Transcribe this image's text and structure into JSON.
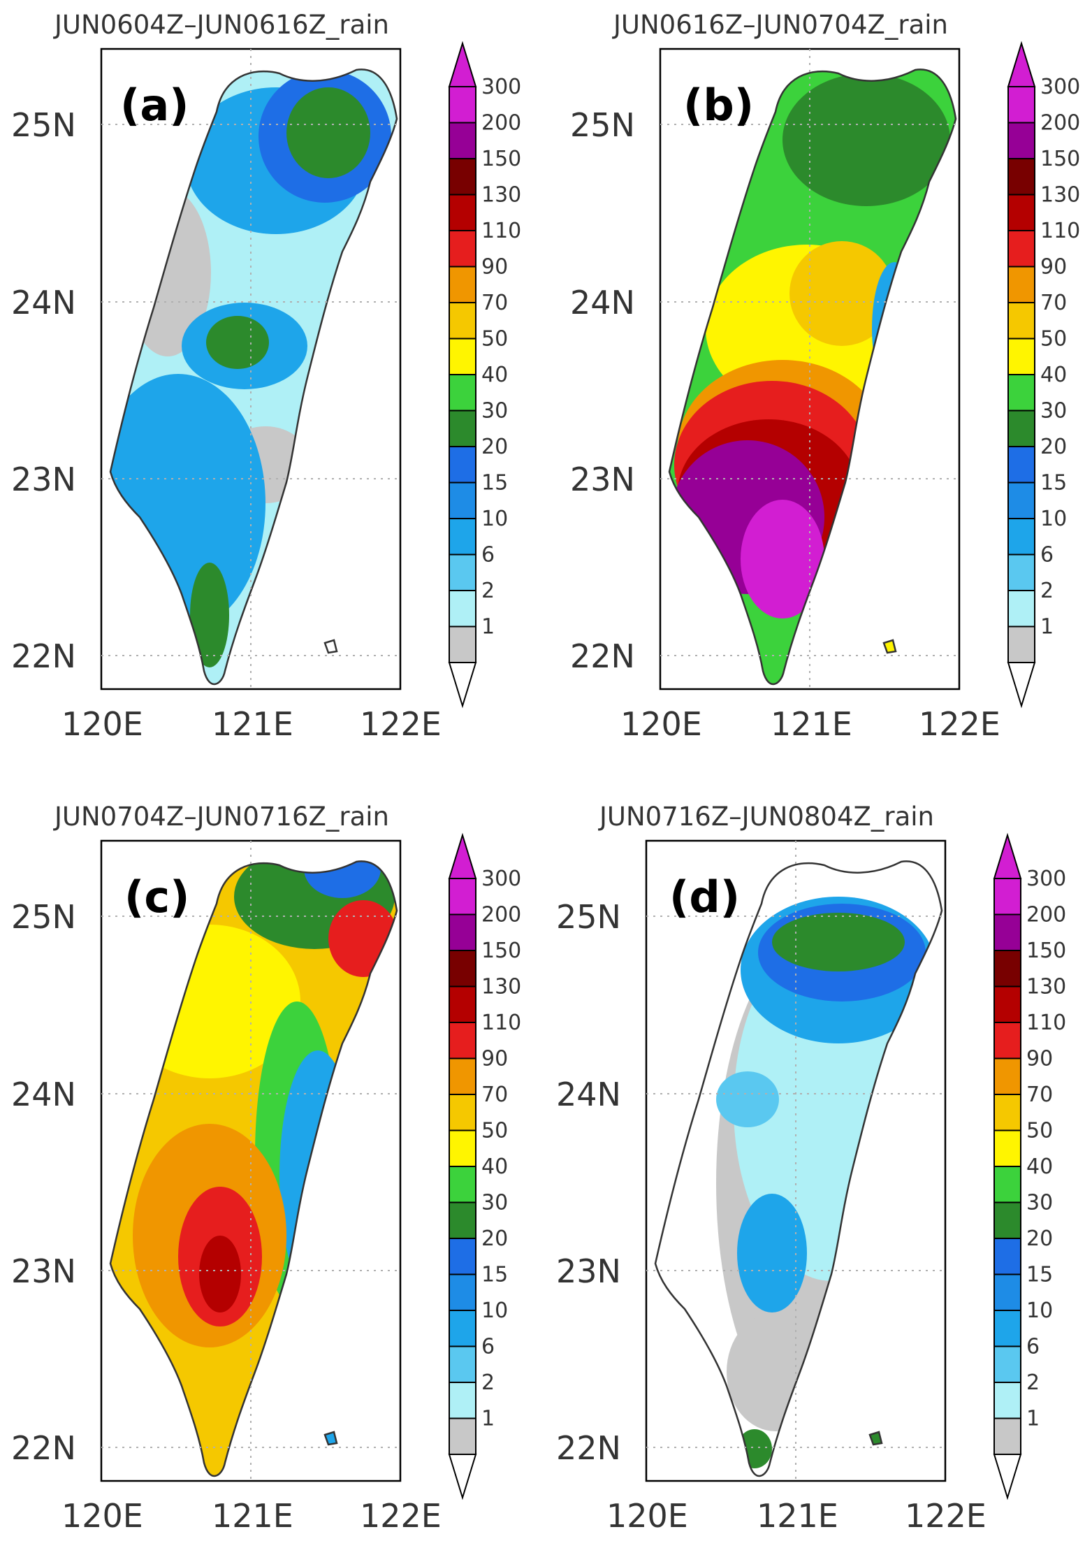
{
  "figure": {
    "panels": [
      {
        "letter": "(a)",
        "title": "JUN0604Z–JUN0616Z_rain",
        "regions": [
          {
            "kind": "base",
            "color": "#aff0f6"
          },
          {
            "kind": "blob",
            "color": "#c8c8c8",
            "at": "north-west lowland"
          },
          {
            "kind": "blob",
            "color": "#c8c8c8",
            "at": "central-south lowland"
          },
          {
            "kind": "blob",
            "color": "#1ea5ea",
            "at": "north"
          },
          {
            "kind": "blob",
            "color": "#1e6ee6",
            "at": "north-east"
          },
          {
            "kind": "blob",
            "color": "#2c8a2c",
            "at": "north-east"
          },
          {
            "kind": "blob",
            "color": "#1ea5ea",
            "at": "centre"
          },
          {
            "kind": "blob",
            "color": "#2c8a2c",
            "at": "centre"
          },
          {
            "kind": "blob",
            "color": "#1ea5ea",
            "at": "south-west"
          },
          {
            "kind": "blob",
            "color": "#2c8a2c",
            "at": "south tip"
          }
        ]
      },
      {
        "letter": "(b)",
        "title": "JUN0616Z–JUN0704Z_rain",
        "regions": [
          {
            "kind": "base",
            "color": "#3cd23c"
          },
          {
            "kind": "blob",
            "color": "#2c8a2c",
            "at": "north"
          },
          {
            "kind": "blob",
            "color": "#fff500",
            "at": "central"
          },
          {
            "kind": "blob",
            "color": "#f5c800",
            "at": "central"
          },
          {
            "kind": "blob",
            "color": "#1ea5ea",
            "at": "east coast"
          },
          {
            "kind": "blob",
            "color": "#f09600",
            "at": "south-west"
          },
          {
            "kind": "blob",
            "color": "#e61e1e",
            "at": "south-west"
          },
          {
            "kind": "blob",
            "color": "#b40000",
            "at": "south-west"
          },
          {
            "kind": "blob",
            "color": "#960096",
            "at": "south-west"
          },
          {
            "kind": "blob",
            "color": "#d21ed2",
            "at": "south"
          }
        ]
      },
      {
        "letter": "(c)",
        "title": "JUN0704Z–JUN0716Z_rain",
        "regions": [
          {
            "kind": "base",
            "color": "#f5c800"
          },
          {
            "kind": "blob",
            "color": "#fff500",
            "at": "north-west"
          },
          {
            "kind": "blob",
            "color": "#2c8a2c",
            "at": "north"
          },
          {
            "kind": "blob",
            "color": "#1e6ee6",
            "at": "north tip"
          },
          {
            "kind": "blob",
            "color": "#e61e1e",
            "at": "north-east"
          },
          {
            "kind": "blob",
            "color": "#3cd23c",
            "at": "east"
          },
          {
            "kind": "blob",
            "color": "#1ea5ea",
            "at": "east coast"
          },
          {
            "kind": "blob",
            "color": "#f09600",
            "at": "south-west"
          },
          {
            "kind": "blob",
            "color": "#e61e1e",
            "at": "south-west"
          },
          {
            "kind": "blob",
            "color": "#b40000",
            "at": "south-west"
          }
        ]
      },
      {
        "letter": "(d)",
        "title": "JUN0716Z–JUN0804Z_rain",
        "regions": [
          {
            "kind": "base",
            "color": "#ffffff"
          },
          {
            "kind": "blob",
            "color": "#c8c8c8",
            "at": "central"
          },
          {
            "kind": "blob",
            "color": "#aff0f6",
            "at": "centre-east"
          },
          {
            "kind": "blob",
            "color": "#1ea5ea",
            "at": "north"
          },
          {
            "kind": "blob",
            "color": "#1e6ee6",
            "at": "north"
          },
          {
            "kind": "blob",
            "color": "#2c8a2c",
            "at": "north"
          },
          {
            "kind": "blob",
            "color": "#5ac8f0",
            "at": "west"
          },
          {
            "kind": "blob",
            "color": "#1ea5ea",
            "at": "centre"
          },
          {
            "kind": "blob",
            "color": "#c8c8c8",
            "at": "south"
          },
          {
            "kind": "blob",
            "color": "#2c8a2c",
            "at": "south tip"
          }
        ]
      }
    ],
    "lat_labels": [
      "25N",
      "24N",
      "23N",
      "22N"
    ],
    "lon_labels": [
      "120E",
      "121E",
      "122E"
    ],
    "colorbar": {
      "labels": [
        "300",
        "200",
        "150",
        "130",
        "110",
        "90",
        "70",
        "50",
        "40",
        "30",
        "20",
        "15",
        "10",
        "6",
        "2",
        "1"
      ],
      "colors": [
        "#d21ed2",
        "#960096",
        "#780000",
        "#b40000",
        "#e61e1e",
        "#f09600",
        "#f5c800",
        "#fff500",
        "#3cd23c",
        "#2c8a2c",
        "#1e6ee6",
        "#1e8ce6",
        "#1ea5ea",
        "#5ac8f0",
        "#aff0f6",
        "#c8c8c8"
      ],
      "over_color": "#d21ed2",
      "under_color": "#ffffff"
    }
  }
}
